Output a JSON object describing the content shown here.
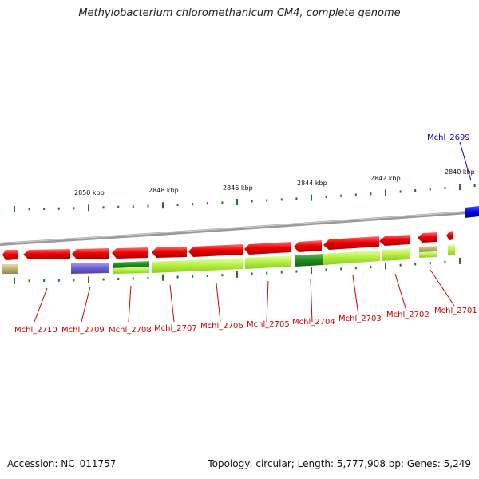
{
  "title": "Methylobacterium chloromethanicum CM4, complete genome",
  "kbp_labels": [
    "2850 kbp",
    "2848 kbp",
    "2846 kbp",
    "2844 kbp",
    "2842 kbp",
    "2840 kbp"
  ],
  "genes_bottom": [
    "Mchl_2710",
    "Mchl_2709",
    "Mchl_2708",
    "Mchl_2707",
    "Mchl_2706",
    "Mchl_2705",
    "Mchl_2704",
    "Mchl_2703",
    "Mchl_2702",
    "Mchl_2701"
  ],
  "gene_top": "Mchl_2699",
  "footer": {
    "accession": "Accession: NC_011757",
    "stats": "Topology: circular; Length: 5,777,908 bp; Genes: 5,249"
  },
  "colors": {
    "forward_gene": "#e00000",
    "reverse_gene_top": "#0000dd",
    "label_red": "#cc0000",
    "label_blue": "#0000cc",
    "tick": "#1a7a1a",
    "backbone": "#888888",
    "cog_lime": "#aaee44",
    "cog_green": "#228b22",
    "cog_purple": "#7060cc",
    "cog_khaki": "#b8b070"
  }
}
